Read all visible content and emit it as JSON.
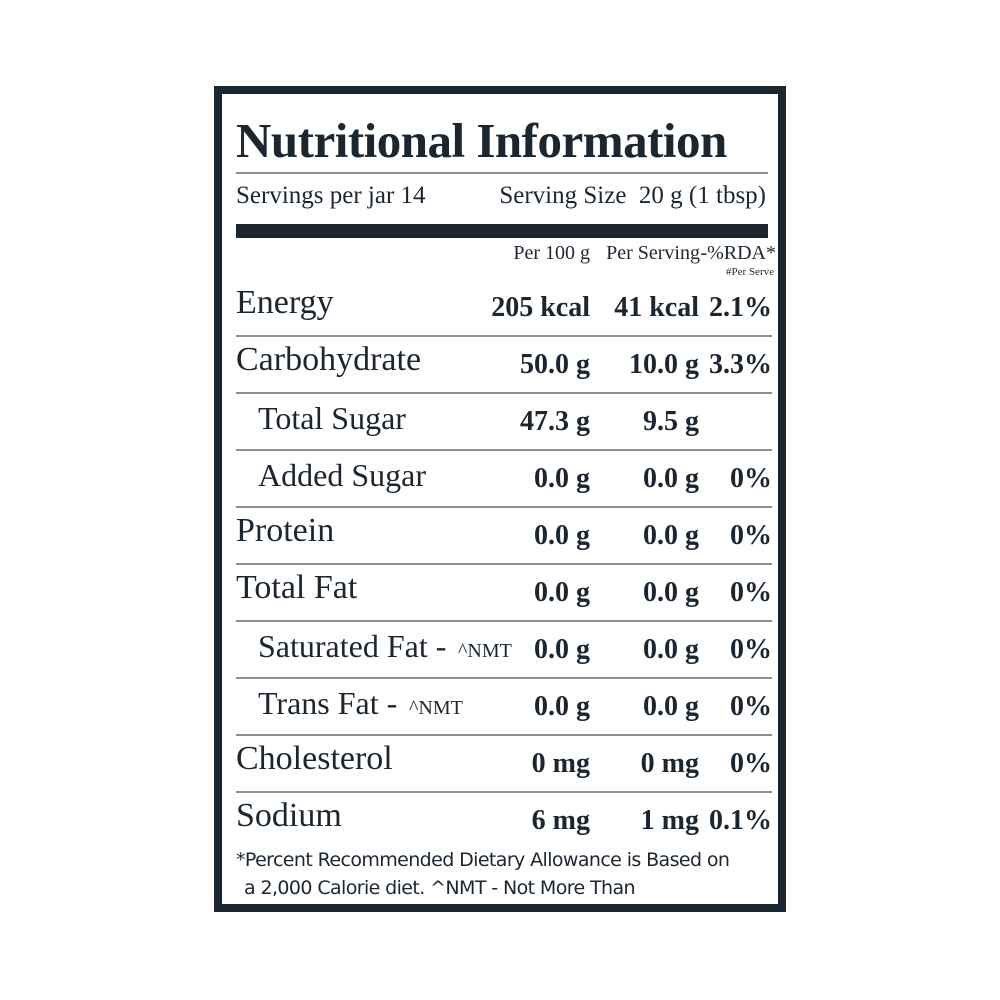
{
  "header": {
    "title": "Nutritional Information",
    "servings": "Servings per jar 14",
    "serving_size": "Serving Size  20 g (1 tbsp)"
  },
  "columns": {
    "per_100g": "Per 100 g",
    "per_serving": "Per Serving",
    "rda": "-%RDA*",
    "rda_note": "#Per Serve"
  },
  "rows": [
    {
      "name": "Energy",
      "per_100g": "205 kcal",
      "per_serving": "41 kcal",
      "rda": "2.1%"
    },
    {
      "name": "Carbohydrate",
      "per_100g": "50.0 g",
      "per_serving": "10.0 g",
      "rda": "3.3%"
    },
    {
      "name": "Total Sugar",
      "per_100g": "47.3 g",
      "per_serving": "9.5 g"
    },
    {
      "name": "Added Sugar",
      "per_100g": "0.0 g",
      "per_serving": "0.0 g",
      "rda": "0%"
    },
    {
      "name": "Protein",
      "per_100g": "0.0 g",
      "per_serving": "0.0 g",
      "rda": "0%"
    },
    {
      "name": "Total Fat",
      "per_100g": "0.0 g",
      "per_serving": "0.0 g",
      "rda": "0%"
    },
    {
      "name": "Saturated Fat -",
      "note": "^NMT",
      "per_100g": "0.0 g",
      "per_serving": "0.0 g",
      "rda": "0%"
    },
    {
      "name": "Trans Fat -",
      "note": "^NMT",
      "per_100g": "0.0 g",
      "per_serving": "0.0 g",
      "rda": "0%"
    },
    {
      "name": "Cholesterol",
      "per_100g": "0 mg",
      "per_serving": "0 mg",
      "rda": "0%"
    },
    {
      "name": "Sodium",
      "per_100g": "6 mg",
      "per_serving": "1 mg",
      "rda": "0.1%"
    }
  ],
  "footnote": {
    "lines": [
      "*Percent Recommended Dietary Allowance is Based on",
      "a 2,000 Calorie diet. ^NMT - Not More Than"
    ]
  }
}
